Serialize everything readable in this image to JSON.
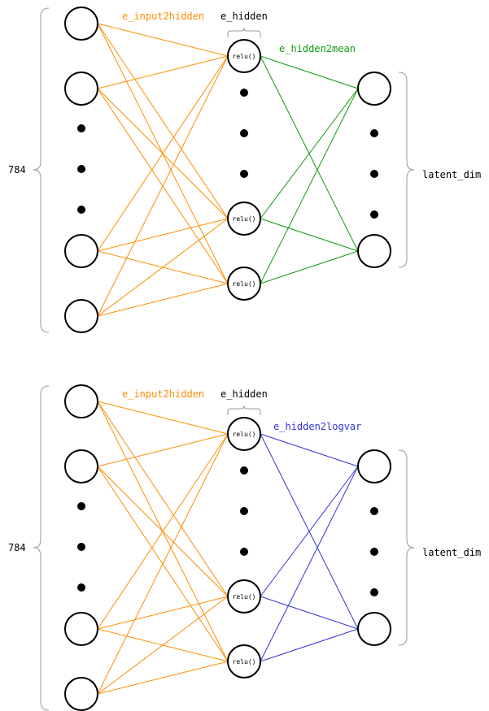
{
  "colors": {
    "input2hidden": "#ff8c00",
    "hidden2mean": "#119911",
    "hidden2logvar": "#3333dd",
    "neuron_stroke": "#000000",
    "brace": "#999999"
  },
  "panels": [
    {
      "input_count_label": "784",
      "input2hidden_label": "e_input2hidden",
      "hidden_label": "e_hidden",
      "hidden2out_label": "e_hidden2mean",
      "latent_label": "latent_dim",
      "hidden_node_label": "relu()",
      "edge_color_key": "hidden2mean"
    },
    {
      "input_count_label": "784",
      "input2hidden_label": "e_input2hidden",
      "hidden_label": "e_hidden",
      "hidden2out_label": "e_hidden2logvar",
      "latent_label": "latent_dim",
      "hidden_node_label": "relu()",
      "edge_color_key": "hidden2logvar"
    }
  ]
}
